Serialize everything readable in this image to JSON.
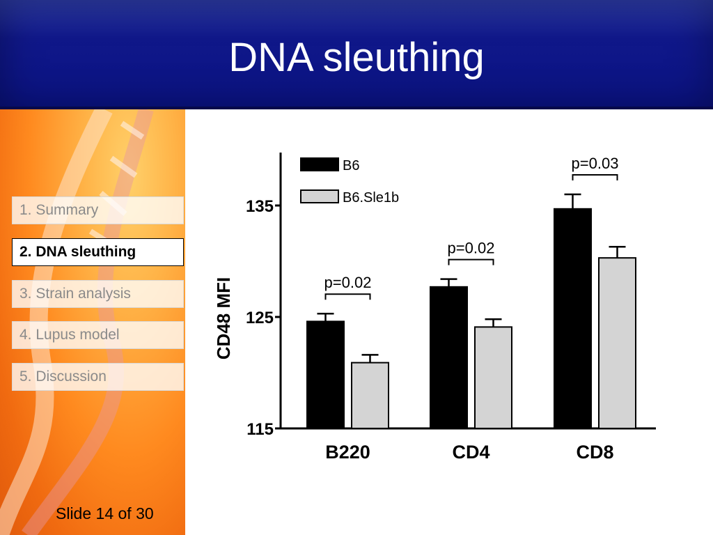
{
  "slide": {
    "title": "DNA sleuthing",
    "counter": "Slide 14 of 30"
  },
  "nav": {
    "items": [
      {
        "label": "1. Summary",
        "active": false
      },
      {
        "label": "2. DNA sleuthing",
        "active": true
      },
      {
        "label": "3. Strain analysis",
        "active": false
      },
      {
        "label": "4. Lupus model",
        "active": false
      },
      {
        "label": "5. Discussion",
        "active": false
      }
    ]
  },
  "colors": {
    "header_blue": "#10188a",
    "series_b6": "#000000",
    "series_sle1b": "#d4d4d4"
  },
  "chart_data": {
    "type": "bar",
    "ylabel": "CD48 MFI",
    "ylim": [
      115,
      140
    ],
    "yticks": [
      115,
      125,
      135
    ],
    "categories": [
      "B220",
      "CD4",
      "CD8"
    ],
    "series": [
      {
        "name": "B6",
        "values": [
          124.6,
          127.7,
          134.7
        ],
        "errors": [
          0.7,
          0.7,
          1.3
        ]
      },
      {
        "name": "B6.Sle1b",
        "values": [
          120.9,
          124.1,
          130.3
        ],
        "errors": [
          0.7,
          0.7,
          1.0
        ]
      }
    ],
    "annotations": [
      "p=0.02",
      "p=0.02",
      "p=0.03"
    ],
    "legend_position": "top-left",
    "grid": false
  }
}
